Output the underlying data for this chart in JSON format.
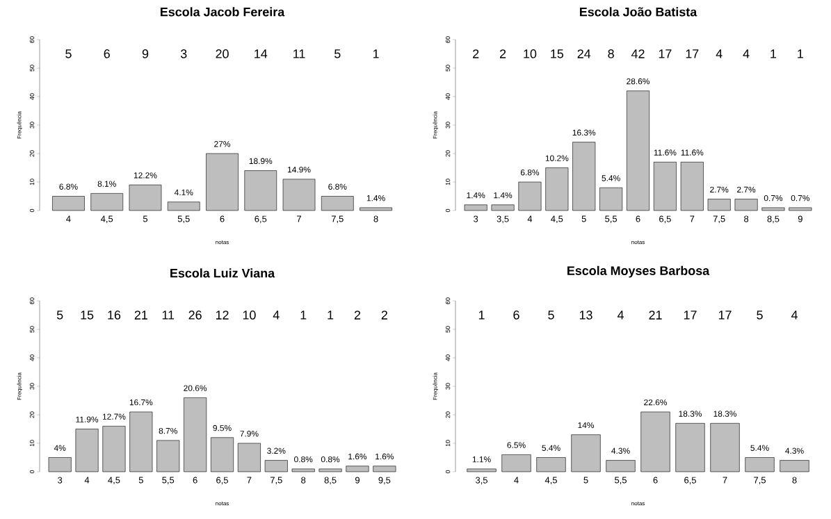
{
  "chart_data": [
    {
      "type": "bar",
      "title": "Escola Jacob Fereira",
      "xlabel": "notas",
      "ylabel": "Frequência",
      "categories": [
        "4",
        "4,5",
        "5",
        "5,5",
        "6",
        "6,5",
        "7",
        "7,5",
        "8"
      ],
      "values": [
        5,
        6,
        9,
        3,
        20,
        14,
        11,
        5,
        1
      ],
      "color": "#bebebe",
      "ylim": [
        0,
        60
      ],
      "yticks": [
        0,
        10,
        20,
        30,
        40,
        50,
        60
      ],
      "annotations": [
        "5",
        "6",
        "9",
        "3",
        "20",
        "14",
        "11",
        "5",
        "1",
        {
          "text": "6.8%",
          "x": "4",
          "y": 5
        },
        {
          "text": "8.1%",
          "x": "4,5",
          "y": 6
        },
        {
          "text": "12.2%",
          "x": "5",
          "y": 9
        },
        {
          "text": "4.1%",
          "x": "5,5",
          "y": 3
        },
        {
          "text": "27%",
          "x": "6",
          "y": 20
        },
        {
          "text": "18.9%",
          "x": "6,5",
          "y": 14
        },
        {
          "text": "14.9%",
          "x": "7",
          "y": 11
        },
        {
          "text": "6.8%",
          "x": "7,5",
          "y": 5
        },
        {
          "text": "1.4%",
          "x": "8",
          "y": 1
        }
      ]
    },
    {
      "type": "bar",
      "title": "Escola João Batista",
      "xlabel": "notas",
      "ylabel": "Frequência",
      "categories": [
        "3",
        "3,5",
        "4",
        "4,5",
        "5",
        "5,5",
        "6",
        "6,5",
        "7",
        "7,5",
        "8",
        "8,5",
        "9"
      ],
      "values": [
        2,
        2,
        10,
        15,
        24,
        8,
        42,
        17,
        17,
        4,
        4,
        1,
        1
      ],
      "color": "#bebebe",
      "ylim": [
        0,
        60
      ],
      "yticks": [
        0,
        10,
        20,
        30,
        40,
        50,
        60
      ],
      "annotations": [
        "2",
        "2",
        "10",
        "15",
        "24",
        "8",
        "42",
        "17",
        "17",
        "4",
        "4",
        "1",
        "1",
        {
          "text": "1.4%",
          "x": "3",
          "y": 2
        },
        {
          "text": "1.4%",
          "x": "3,5",
          "y": 2
        },
        {
          "text": "6.8%",
          "x": "4",
          "y": 10
        },
        {
          "text": "10.2%",
          "x": "4,5",
          "y": 15
        },
        {
          "text": "16.3%",
          "x": "5",
          "y": 24
        },
        {
          "text": "5.4%",
          "x": "5,5",
          "y": 8
        },
        {
          "text": "28.6%",
          "x": "6",
          "y": 42
        },
        {
          "text": "11.6%",
          "x": "6,5",
          "y": 17
        },
        {
          "text": "11.6%",
          "x": "7",
          "y": 17
        },
        {
          "text": "2.7%",
          "x": "7,5",
          "y": 4
        },
        {
          "text": "2.7%",
          "x": "8",
          "y": 4
        },
        {
          "text": "0.7%",
          "x": "8,5",
          "y": 1
        },
        {
          "text": "0.7%",
          "x": "9",
          "y": 1
        }
      ]
    },
    {
      "type": "bar",
      "title": "Escola Luiz Viana",
      "xlabel": "notas",
      "ylabel": "Frequência",
      "categories": [
        "3",
        "4",
        "4,5",
        "5",
        "5,5",
        "6",
        "6,5",
        "7",
        "7,5",
        "8",
        "8,5",
        "9",
        "9,5"
      ],
      "values": [
        5,
        15,
        16,
        21,
        11,
        26,
        12,
        10,
        4,
        1,
        1,
        2,
        2
      ],
      "color": "#bebebe",
      "ylim": [
        0,
        60
      ],
      "yticks": [
        0,
        10,
        20,
        30,
        40,
        50,
        60
      ],
      "annotations": [
        "5",
        "15",
        "16",
        "21",
        "11",
        "26",
        "12",
        "10",
        "4",
        "1",
        "1",
        "2",
        "2",
        {
          "text": "4%",
          "x": "3",
          "y": 5
        },
        {
          "text": "11.9%",
          "x": "4",
          "y": 15
        },
        {
          "text": "12.7%",
          "x": "4,5",
          "y": 16
        },
        {
          "text": "16.7%",
          "x": "5",
          "y": 21
        },
        {
          "text": "8.7%",
          "x": "5,5",
          "y": 11
        },
        {
          "text": "20.6%",
          "x": "6",
          "y": 26
        },
        {
          "text": "9.5%",
          "x": "6,5",
          "y": 12
        },
        {
          "text": "7.9%",
          "x": "7",
          "y": 10
        },
        {
          "text": "3.2%",
          "x": "7,5",
          "y": 4
        },
        {
          "text": "0.8%",
          "x": "8",
          "y": 1
        },
        {
          "text": "0.8%",
          "x": "8,5",
          "y": 1
        },
        {
          "text": "1.6%",
          "x": "9",
          "y": 2
        },
        {
          "text": "1.6%",
          "x": "9,5",
          "y": 2
        }
      ]
    },
    {
      "type": "bar",
      "title": "Escola Moyses Barbosa",
      "xlabel": "notas",
      "ylabel": "Frequência",
      "categories": [
        "3,5",
        "4",
        "4,5",
        "5",
        "5,5",
        "6",
        "6,5",
        "7",
        "7,5",
        "8"
      ],
      "values": [
        1,
        6,
        5,
        13,
        4,
        21,
        17,
        17,
        5,
        4
      ],
      "color": "#bebebe",
      "ylim": [
        0,
        60
      ],
      "yticks": [
        0,
        10,
        20,
        30,
        40,
        50,
        60
      ],
      "annotations": [
        "1",
        "6",
        "5",
        "13",
        "4",
        "21",
        "17",
        "17",
        "5",
        "4",
        {
          "text": "1.1%",
          "x": "3,5",
          "y": 1
        },
        {
          "text": "6.5%",
          "x": "4",
          "y": 6
        },
        {
          "text": "5.4%",
          "x": "4,5",
          "y": 5
        },
        {
          "text": "14%",
          "x": "5",
          "y": 13
        },
        {
          "text": "4.3%",
          "x": "5,5",
          "y": 4
        },
        {
          "text": "22.6%",
          "x": "6",
          "y": 21
        },
        {
          "text": "18.3%",
          "x": "6,5",
          "y": 17
        },
        {
          "text": "18.3%",
          "x": "7",
          "y": 17
        },
        {
          "text": "5.4%",
          "x": "7,5",
          "y": 5
        },
        {
          "text": "4.3%",
          "x": "8",
          "y": 4
        }
      ]
    }
  ]
}
